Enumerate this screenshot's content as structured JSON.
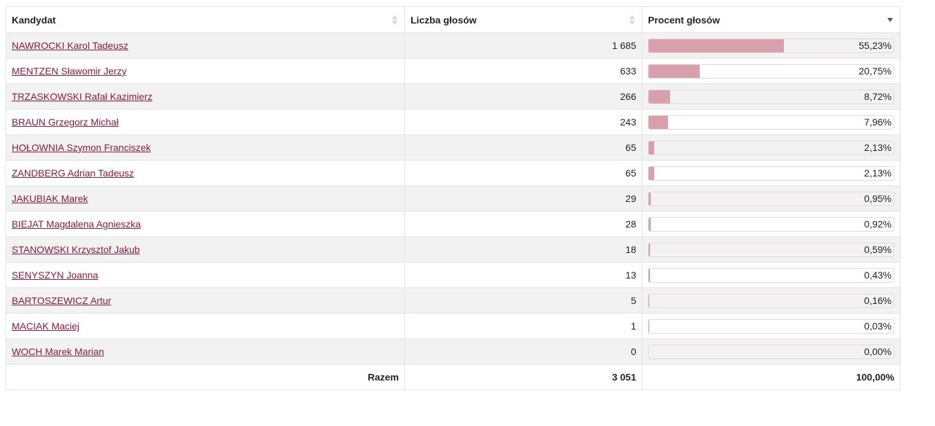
{
  "table": {
    "headers": {
      "candidate": "Kandydat",
      "votes": "Liczba głosów",
      "percent": "Procent głosów"
    },
    "sort": {
      "column": "percent",
      "direction": "desc"
    },
    "bar_color": "#d8a0ad",
    "link_color": "#8e1a3b",
    "rows": [
      {
        "name": "NAWROCKI Karol Tadeusz",
        "votes": "1 685",
        "percent": "55,23%",
        "share": 55.23
      },
      {
        "name": "MENTZEN Sławomir Jerzy",
        "votes": "633",
        "percent": "20,75%",
        "share": 20.75
      },
      {
        "name": "TRZASKOWSKI Rafał Kazimierz",
        "votes": "266",
        "percent": "8,72%",
        "share": 8.72
      },
      {
        "name": "BRAUN Grzegorz Michał",
        "votes": "243",
        "percent": "7,96%",
        "share": 7.96
      },
      {
        "name": "HOŁOWNIA Szymon Franciszek",
        "votes": "65",
        "percent": "2,13%",
        "share": 2.13
      },
      {
        "name": "ZANDBERG Adrian Tadeusz",
        "votes": "65",
        "percent": "2,13%",
        "share": 2.13
      },
      {
        "name": "JAKUBIAK Marek",
        "votes": "29",
        "percent": "0,95%",
        "share": 0.95
      },
      {
        "name": "BIEJAT Magdalena Agnieszka",
        "votes": "28",
        "percent": "0,92%",
        "share": 0.92
      },
      {
        "name": "STANOWSKI Krzysztof Jakub",
        "votes": "18",
        "percent": "0,59%",
        "share": 0.59
      },
      {
        "name": "SENYSZYN Joanna",
        "votes": "13",
        "percent": "0,43%",
        "share": 0.43
      },
      {
        "name": "BARTOSZEWICZ Artur",
        "votes": "5",
        "percent": "0,16%",
        "share": 0.16
      },
      {
        "name": "MACIAK Maciej",
        "votes": "1",
        "percent": "0,03%",
        "share": 0.03
      },
      {
        "name": "WOCH Marek Marian",
        "votes": "0",
        "percent": "0,00%",
        "share": 0.0
      }
    ],
    "footer": {
      "label": "Razem",
      "votes": "3 051",
      "percent": "100,00%"
    }
  }
}
